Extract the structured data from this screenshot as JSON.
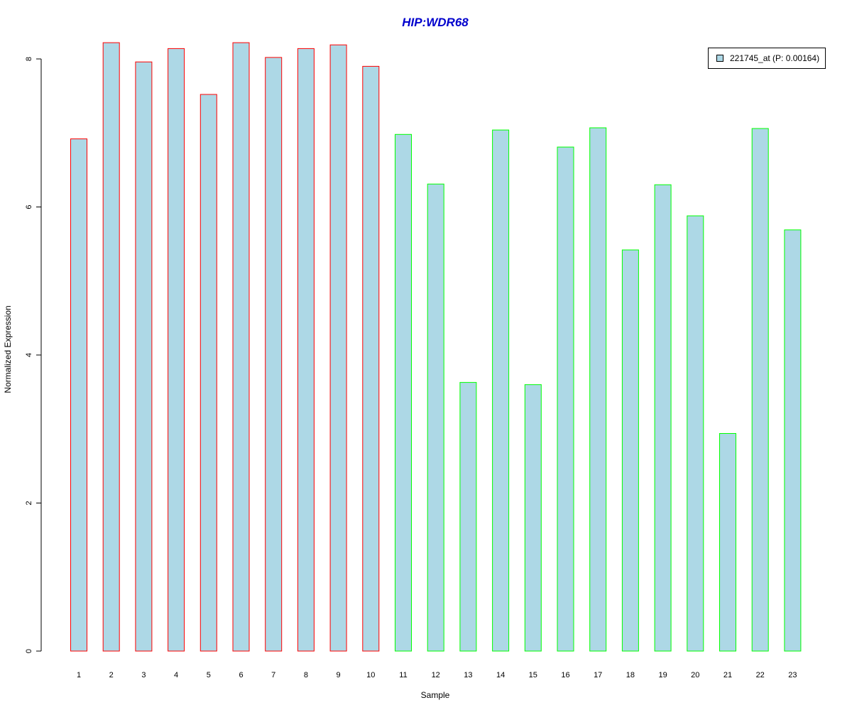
{
  "chart_data": {
    "type": "bar",
    "title": "HIP:WDR68",
    "xlabel": "Sample",
    "ylabel": "Normalized Expression",
    "categories": [
      "1",
      "2",
      "3",
      "4",
      "5",
      "6",
      "7",
      "8",
      "9",
      "10",
      "11",
      "12",
      "13",
      "14",
      "15",
      "16",
      "17",
      "18",
      "19",
      "20",
      "21",
      "22",
      "23"
    ],
    "series": [
      {
        "name": "221745_at (P: 0.00164)",
        "values": [
          6.92,
          8.22,
          7.96,
          8.14,
          7.52,
          8.22,
          8.02,
          8.14,
          8.19,
          7.9,
          6.98,
          6.31,
          3.63,
          7.04,
          3.6,
          6.81,
          7.07,
          5.42,
          6.3,
          5.88,
          2.94,
          7.06,
          5.69
        ]
      }
    ],
    "group_border_colors": [
      "#ff0000",
      "#ff0000",
      "#ff0000",
      "#ff0000",
      "#ff0000",
      "#ff0000",
      "#ff0000",
      "#ff0000",
      "#ff0000",
      "#ff0000",
      "#00ff00",
      "#00ff00",
      "#00ff00",
      "#00ff00",
      "#00ff00",
      "#00ff00",
      "#00ff00",
      "#00ff00",
      "#00ff00",
      "#00ff00",
      "#00ff00",
      "#00ff00",
      "#00ff00"
    ],
    "bar_fill": "#add8e6",
    "title_color": "#0000cd",
    "yticks": [
      0,
      2,
      4,
      6,
      8
    ],
    "ylim": [
      0,
      8.22
    ],
    "grid": false,
    "legend_position": "top-right"
  }
}
